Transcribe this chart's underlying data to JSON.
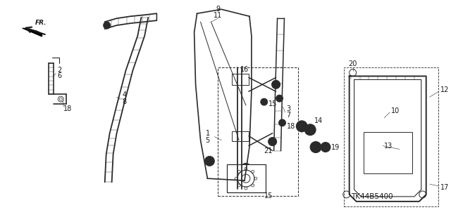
{
  "bg_color": "#ffffff",
  "part_number": "TK44B5400",
  "line_color": "#2a2a2a",
  "text_color": "#1a1a1a",
  "font_size": 7.0,
  "part_num_fontsize": 7.5
}
